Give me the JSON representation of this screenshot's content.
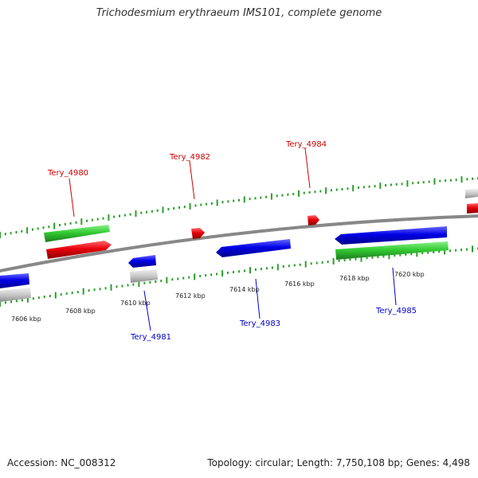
{
  "title": "Trichodesmium erythraeum IMS101, complete genome",
  "footer": {
    "accession": "Accession: NC_008312",
    "summary": "Topology: circular; Length: 7,750,108 bp; Genes: 4,498"
  },
  "colors": {
    "forward_gene": "#e8000b",
    "reverse_gene": "#0000e6",
    "cds": "#33cc33",
    "other": "#c0c0c0",
    "backbone": "#888888",
    "ticks": "#2a9d2a"
  },
  "scale_labels": [
    "7606 kbp",
    "7608 kbp",
    "7610 kbp",
    "7612 kbp",
    "7614 kbp",
    "7616 kbp",
    "7618 kbp",
    "7620 kbp"
  ],
  "gene_labels": {
    "forward": [
      "Tery_4980",
      "Tery_4982",
      "Tery_4984"
    ],
    "reverse": [
      "Tery_4981",
      "Tery_4983",
      "Tery_4985"
    ]
  }
}
